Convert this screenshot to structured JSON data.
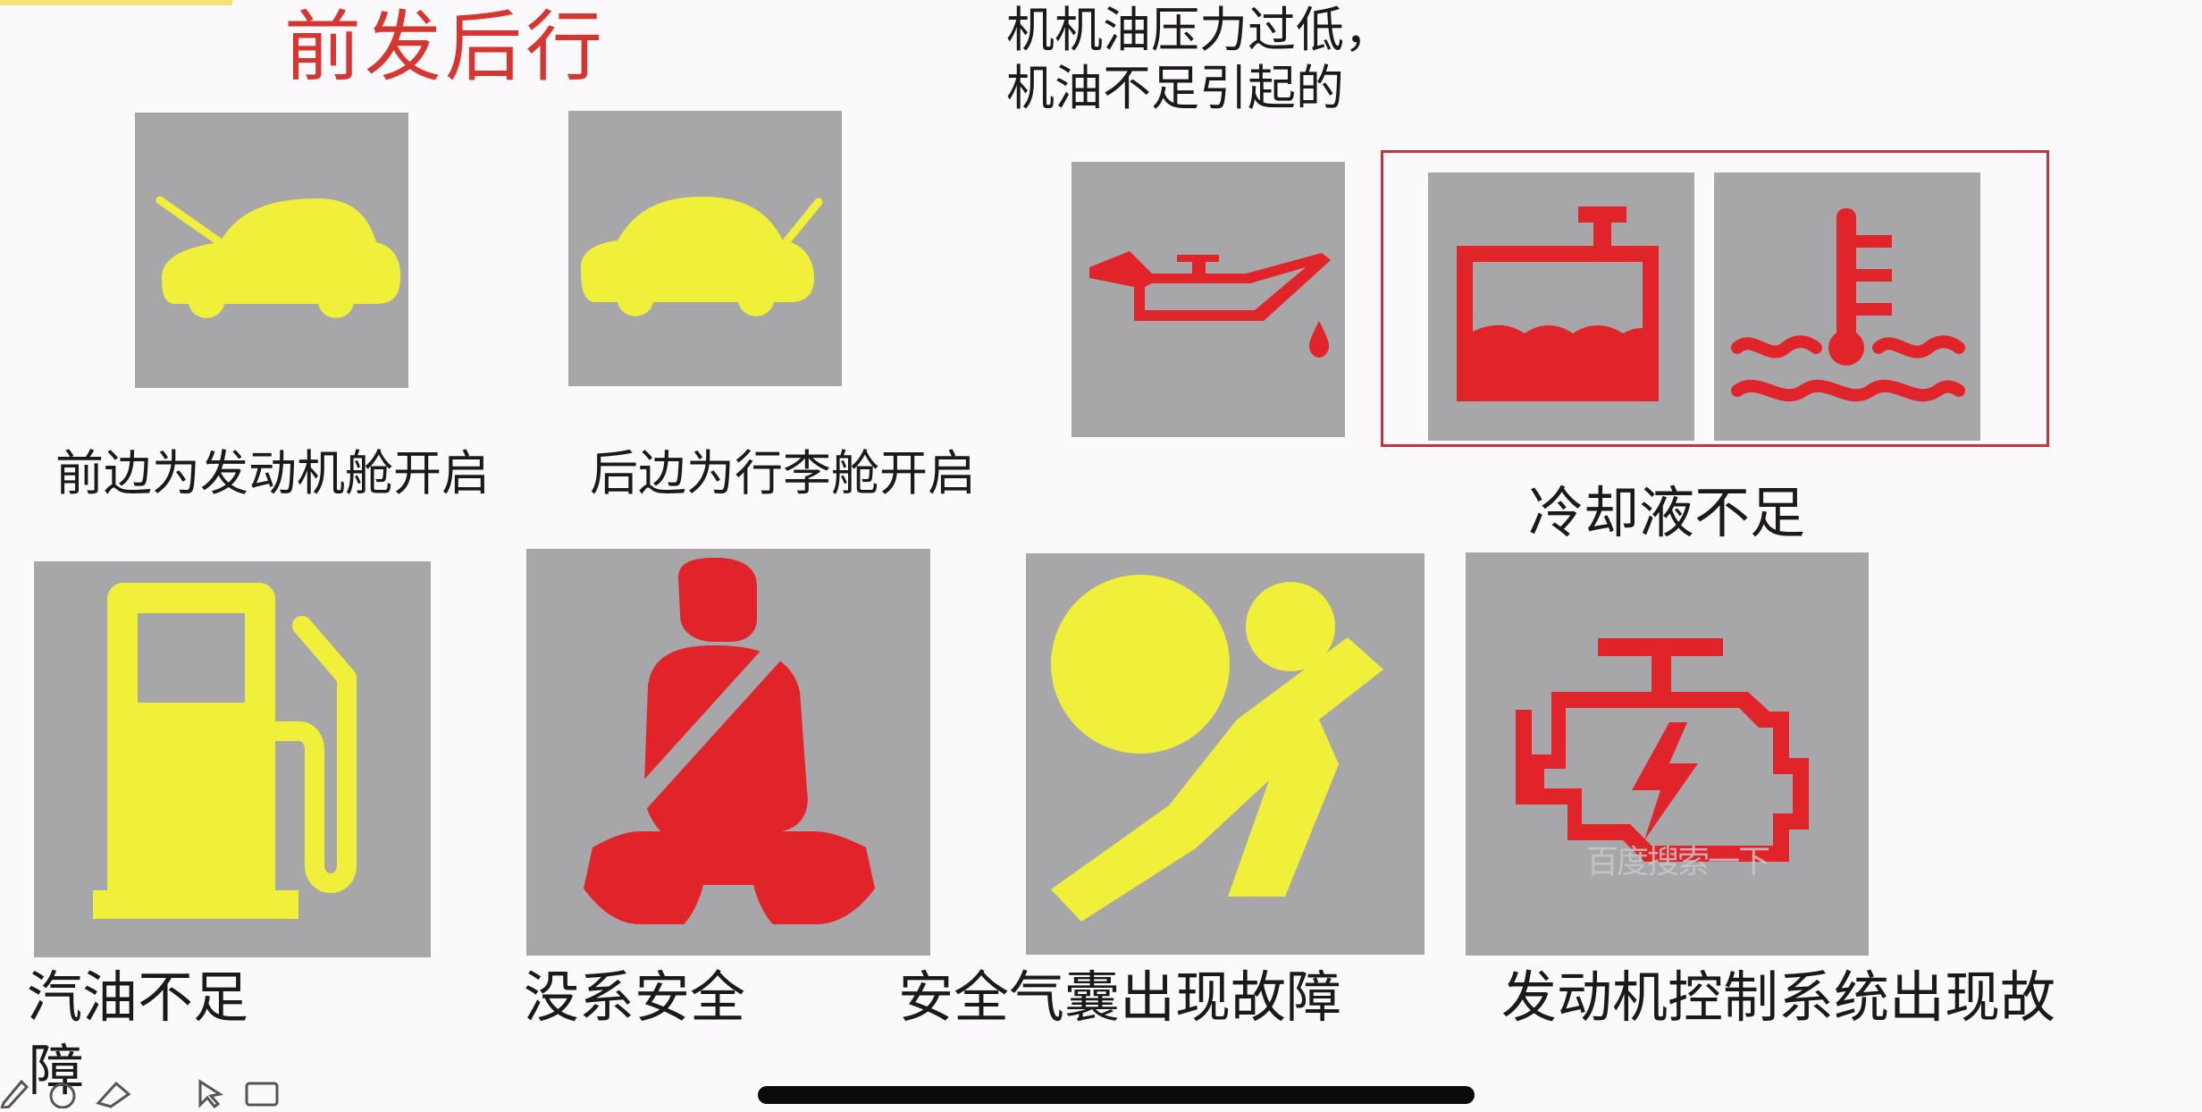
{
  "title": "前发后行",
  "oil_note": "机机油压力过低，\n机油不足引起的",
  "captions": {
    "hood_open": "前边为发动机舱开启",
    "trunk_open": "后边为行李舱开启",
    "coolant": "冷却液不足",
    "fuel_line1": "汽油不足",
    "fuel_line2": "障",
    "seatbelt": "没系安全",
    "airbag": "安全气囊出现故障",
    "engine": "发动机控制系统出现故"
  },
  "watermark": "百度搜索一下",
  "colors": {
    "tile_bg": "#a7a6a8",
    "warning_red": "#e0242a",
    "indicator_yellow": "#f0ef3a",
    "title_red": "#d7352f",
    "frame_red": "#c8323c"
  },
  "icons": [
    "hood-open-icon",
    "trunk-open-icon",
    "oil-pressure-icon",
    "coolant-level-icon",
    "coolant-temperature-icon",
    "fuel-pump-icon",
    "seatbelt-icon",
    "airbag-icon",
    "check-engine-icon"
  ]
}
